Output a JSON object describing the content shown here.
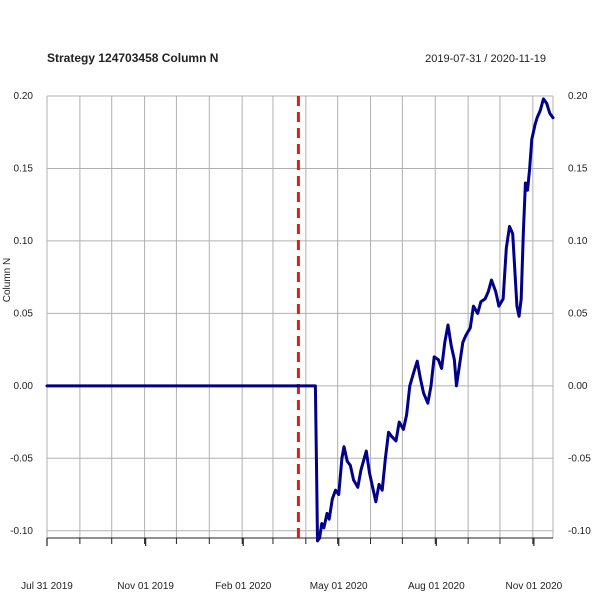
{
  "chart_data": {
    "type": "line",
    "title": "Strategy 124703458 Column N",
    "date_range": "2019-07-31 / 2020-11-19",
    "ylabel": "Column N",
    "xlabel": "",
    "x_range": [
      "2019-07-31",
      "2020-11-19"
    ],
    "ylim": [
      -0.105,
      0.2
    ],
    "y_ticks": [
      -0.1,
      -0.05,
      0.0,
      0.05,
      0.1,
      0.15,
      0.2
    ],
    "y_tick_labels": [
      "-0.10",
      "-0.05",
      "0.00",
      "0.05",
      "0.10",
      "0.15",
      "0.20"
    ],
    "x_tick_labels": [
      {
        "date": "2019-07-31",
        "label": "Jul 31 2019"
      },
      {
        "date": "2019-11-01",
        "label": "Nov 01 2019"
      },
      {
        "date": "2020-02-01",
        "label": "Feb 01 2020"
      },
      {
        "date": "2020-05-01",
        "label": "May 01 2020"
      },
      {
        "date": "2020-08-01",
        "label": "Aug 01 2020"
      },
      {
        "date": "2020-11-01",
        "label": "Nov 01 2020"
      }
    ],
    "x_minor_ticks": [
      "2019-08-31",
      "2019-09-30",
      "2019-10-31",
      "2019-11-30",
      "2019-12-31",
      "2020-01-31",
      "2020-02-29",
      "2020-03-31",
      "2020-04-30",
      "2020-05-31",
      "2020-06-30",
      "2020-07-31",
      "2020-08-31",
      "2020-09-30",
      "2020-10-31"
    ],
    "vertical_gridlines": [
      "2019-08-31",
      "2019-09-30",
      "2019-10-31",
      "2019-11-30",
      "2019-12-31",
      "2020-01-31",
      "2020-02-29",
      "2020-03-31",
      "2020-04-30",
      "2020-05-31",
      "2020-06-30",
      "2020-07-31",
      "2020-08-31",
      "2020-09-30",
      "2020-10-31"
    ],
    "grid": true,
    "marker_line": {
      "date": "2020-03-24",
      "style": "dashed",
      "color": "#e31a1c"
    },
    "series": [
      {
        "color": "#00008b",
        "points": [
          [
            "2019-07-31",
            0.0
          ],
          [
            "2020-04-09",
            0.0
          ],
          [
            "2020-04-10",
            -0.052
          ],
          [
            "2020-04-11",
            -0.107
          ],
          [
            "2020-04-13",
            -0.105
          ],
          [
            "2020-04-15",
            -0.095
          ],
          [
            "2020-04-17",
            -0.098
          ],
          [
            "2020-04-20",
            -0.088
          ],
          [
            "2020-04-22",
            -0.092
          ],
          [
            "2020-04-25",
            -0.078
          ],
          [
            "2020-04-28",
            -0.072
          ],
          [
            "2020-05-01",
            -0.075
          ],
          [
            "2020-05-04",
            -0.05
          ],
          [
            "2020-05-06",
            -0.042
          ],
          [
            "2020-05-09",
            -0.052
          ],
          [
            "2020-05-12",
            -0.055
          ],
          [
            "2020-05-15",
            -0.065
          ],
          [
            "2020-05-19",
            -0.07
          ],
          [
            "2020-05-22",
            -0.058
          ],
          [
            "2020-05-27",
            -0.045
          ],
          [
            "2020-05-30",
            -0.06
          ],
          [
            "2020-06-02",
            -0.07
          ],
          [
            "2020-06-05",
            -0.08
          ],
          [
            "2020-06-08",
            -0.068
          ],
          [
            "2020-06-11",
            -0.072
          ],
          [
            "2020-06-14",
            -0.05
          ],
          [
            "2020-06-17",
            -0.032
          ],
          [
            "2020-06-20",
            -0.035
          ],
          [
            "2020-06-24",
            -0.038
          ],
          [
            "2020-06-27",
            -0.025
          ],
          [
            "2020-07-01",
            -0.03
          ],
          [
            "2020-07-04",
            -0.02
          ],
          [
            "2020-07-07",
            0.0
          ],
          [
            "2020-07-11",
            0.01
          ],
          [
            "2020-07-14",
            0.017
          ],
          [
            "2020-07-17",
            0.005
          ],
          [
            "2020-07-20",
            -0.005
          ],
          [
            "2020-07-24",
            -0.012
          ],
          [
            "2020-07-27",
            0.0
          ],
          [
            "2020-07-30",
            0.02
          ],
          [
            "2020-08-03",
            0.018
          ],
          [
            "2020-08-06",
            0.012
          ],
          [
            "2020-08-09",
            0.03
          ],
          [
            "2020-08-12",
            0.042
          ],
          [
            "2020-08-15",
            0.028
          ],
          [
            "2020-08-18",
            0.018
          ],
          [
            "2020-08-20",
            0.0
          ],
          [
            "2020-08-23",
            0.015
          ],
          [
            "2020-08-26",
            0.03
          ],
          [
            "2020-08-29",
            0.035
          ],
          [
            "2020-09-02",
            0.04
          ],
          [
            "2020-09-05",
            0.055
          ],
          [
            "2020-09-09",
            0.05
          ],
          [
            "2020-09-12",
            0.058
          ],
          [
            "2020-09-16",
            0.06
          ],
          [
            "2020-09-19",
            0.065
          ],
          [
            "2020-09-22",
            0.073
          ],
          [
            "2020-09-26",
            0.065
          ],
          [
            "2020-09-29",
            0.055
          ],
          [
            "2020-10-03",
            0.06
          ],
          [
            "2020-10-06",
            0.095
          ],
          [
            "2020-10-09",
            0.11
          ],
          [
            "2020-10-12",
            0.105
          ],
          [
            "2020-10-14",
            0.08
          ],
          [
            "2020-10-16",
            0.055
          ],
          [
            "2020-10-18",
            0.048
          ],
          [
            "2020-10-20",
            0.06
          ],
          [
            "2020-10-22",
            0.105
          ],
          [
            "2020-10-24",
            0.14
          ],
          [
            "2020-10-26",
            0.135
          ],
          [
            "2020-10-28",
            0.15
          ],
          [
            "2020-10-30",
            0.17
          ],
          [
            "2020-11-02",
            0.18
          ],
          [
            "2020-11-04",
            0.185
          ],
          [
            "2020-11-07",
            0.19
          ],
          [
            "2020-11-10",
            0.198
          ],
          [
            "2020-11-13",
            0.195
          ],
          [
            "2020-11-16",
            0.188
          ],
          [
            "2020-11-19",
            0.185
          ]
        ]
      }
    ]
  },
  "colors": {
    "line": "#00008b",
    "marker": "#e31a1c",
    "grid": "#b0b0b0",
    "axis": "#222222"
  }
}
